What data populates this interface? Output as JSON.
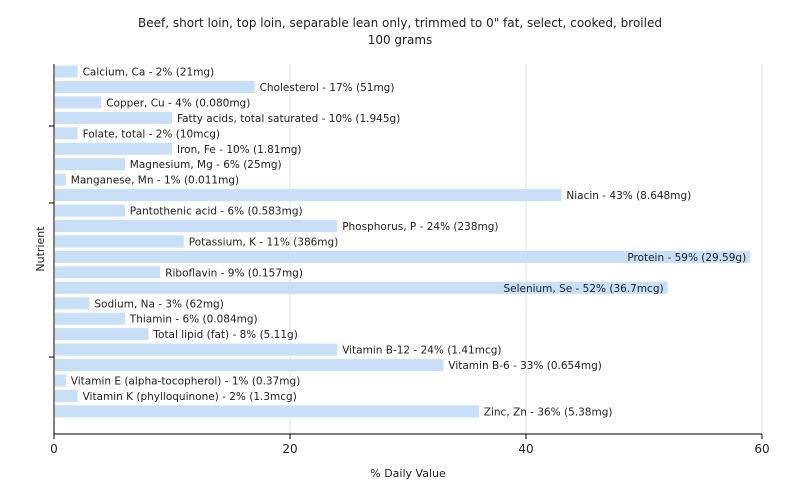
{
  "chart_data": {
    "type": "bar",
    "orientation": "horizontal",
    "title": "Beef, short loin, top loin, separable lean only, trimmed to 0\" fat, select, cooked, broiled",
    "subtitle": "100 grams",
    "xlabel": "% Daily Value",
    "ylabel": "Nutrient",
    "xlim": [
      0,
      60
    ],
    "xticks": [
      0,
      20,
      40,
      60
    ],
    "grid": true,
    "bar_color": "#c9def7",
    "categories": [
      "Calcium, Ca",
      "Cholesterol",
      "Copper, Cu",
      "Fatty acids, total saturated",
      "Folate, total",
      "Iron, Fe",
      "Magnesium, Mg",
      "Manganese, Mn",
      "Niacin",
      "Pantothenic acid",
      "Phosphorus, P",
      "Potassium, K",
      "Protein",
      "Riboflavin",
      "Selenium, Se",
      "Sodium, Na",
      "Thiamin",
      "Total lipid (fat)",
      "Vitamin B-12",
      "Vitamin B-6",
      "Vitamin E (alpha-tocopherol)",
      "Vitamin K (phylloquinone)",
      "Zinc, Zn"
    ],
    "values": [
      2,
      17,
      4,
      10,
      2,
      10,
      6,
      1,
      43,
      6,
      24,
      11,
      59,
      9,
      52,
      3,
      6,
      8,
      24,
      33,
      1,
      2,
      36
    ],
    "data_labels": [
      "Calcium, Ca - 2% (21mg)",
      "Cholesterol - 17% (51mg)",
      "Copper, Cu - 4% (0.080mg)",
      "Fatty acids, total saturated - 10% (1.945g)",
      "Folate, total - 2% (10mcg)",
      "Iron, Fe - 10% (1.81mg)",
      "Magnesium, Mg - 6% (25mg)",
      "Manganese, Mn - 1% (0.011mg)",
      "Niacin - 43% (8.648mg)",
      "Pantothenic acid - 6% (0.583mg)",
      "Phosphorus, P - 24% (238mg)",
      "Potassium, K - 11% (386mg)",
      "Protein - 59% (29.59g)",
      "Riboflavin - 9% (0.157mg)",
      "Selenium, Se - 52% (36.7mcg)",
      "Sodium, Na - 3% (62mg)",
      "Thiamin - 6% (0.084mg)",
      "Total lipid (fat) - 8% (5.11g)",
      "Vitamin B-12 - 24% (1.41mcg)",
      "Vitamin B-6 - 33% (0.654mg)",
      "Vitamin E (alpha-tocopherol) - 1% (0.37mg)",
      "Vitamin K (phylloquinone) - 2% (1.3mcg)",
      "Zinc, Zn - 36% (5.38mg)"
    ]
  }
}
